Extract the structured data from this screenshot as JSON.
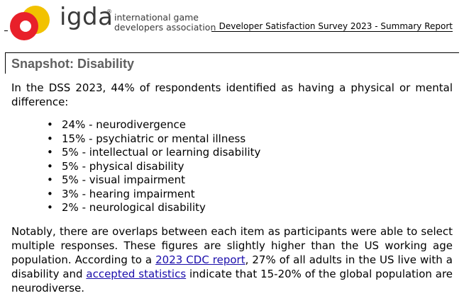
{
  "header": {
    "logo_word": "igda",
    "logo_registered": "®",
    "logo_line1": "international game",
    "logo_line2": "developers association",
    "report_title": "Developer Satisfaction Survey 2023 - Summary Report",
    "logo_colors": {
      "yellow": "#f2c200",
      "red": "#e8202a",
      "gray": "#3a3a3a"
    }
  },
  "snapshot": {
    "title": "Snapshot: Disability"
  },
  "intro": "In the DSS 2023, 44% of respondents identified as having a physical or mental difference:",
  "bullets": [
    "24% - neurodivergence",
    "15% - psychiatric or mental illness",
    "5% - intellectual or learning disability",
    "5% - physical disability",
    "5% - visual impairment",
    "3% - hearing impairment",
    "2% - neurological disability"
  ],
  "closing": {
    "part1": "Notably, there are overlaps between each item as participants were able to select multiple responses. These figures are slightly higher than the US working age population. According to a ",
    "link1": "2023 CDC report",
    "part2": ", 27% of all adults in the US live with a disability and ",
    "link2": "accepted statistics",
    "part3": " indicate that 15-20% of the global population are neurodiverse."
  },
  "link_color": "#1a0dab"
}
